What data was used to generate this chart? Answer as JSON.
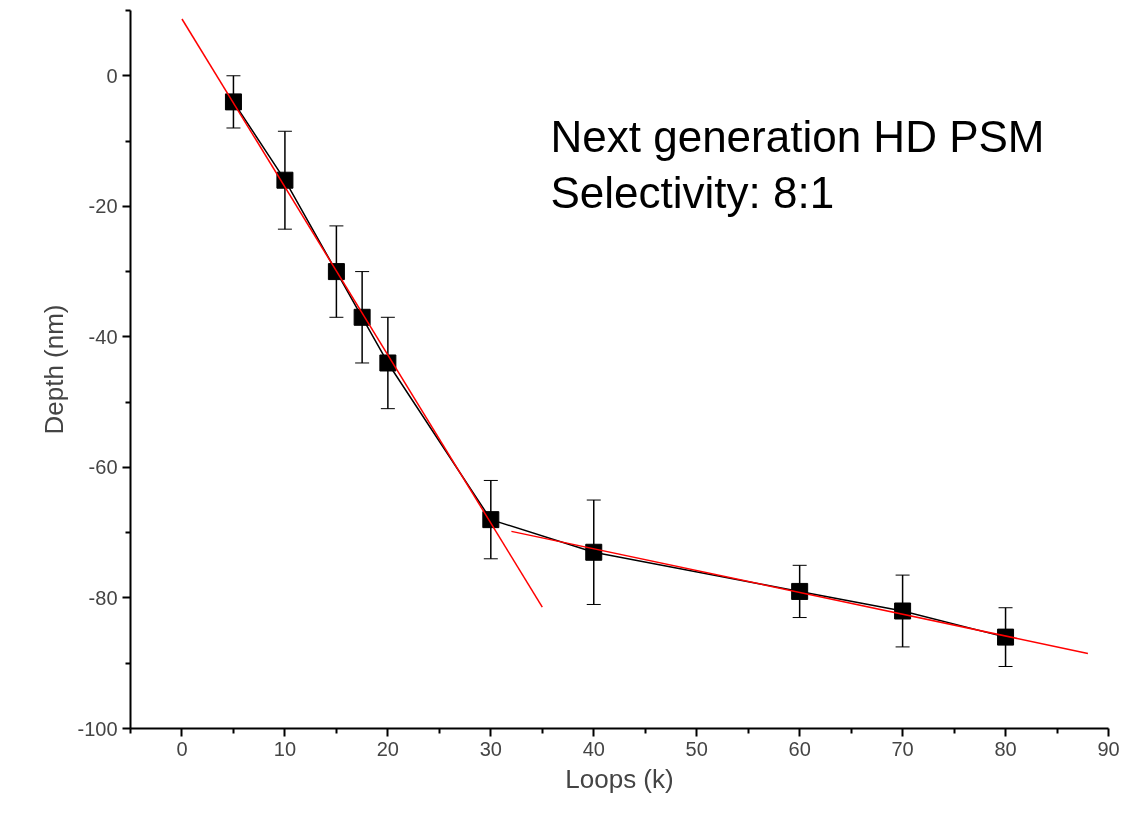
{
  "chart_data": {
    "type": "line",
    "xlabel": "Loops (k)",
    "ylabel": "Depth (nm)",
    "annotations": [
      "Next generation HD PSM",
      "Selectivity: 8:1"
    ],
    "xlim": [
      -5,
      90
    ],
    "xticks": [
      0,
      10,
      20,
      30,
      40,
      50,
      60,
      70,
      80,
      90
    ],
    "ylim": [
      -100,
      10
    ],
    "yticks": [
      -100,
      -80,
      -60,
      -40,
      -20,
      0
    ],
    "grid": false,
    "marker": "square",
    "line_style": "solid",
    "series": [
      {
        "color": "#000000",
        "x": [
          5,
          10,
          15,
          17.5,
          20,
          30,
          40,
          60,
          70,
          80
        ],
        "values": [
          -4,
          -16,
          -30,
          -37,
          -44,
          -68,
          -73,
          -79,
          -82,
          -86
        ],
        "errors": [
          4,
          7.5,
          7,
          7,
          7,
          6,
          8,
          4,
          5.5,
          4.5
        ]
      },
      {
        "color": "#ff0000",
        "x": [
          0,
          35
        ],
        "values": [
          8.7,
          -81.4
        ],
        "marker": "none"
      },
      {
        "color": "#ff0000",
        "x": [
          32,
          88
        ],
        "values": [
          -69.8,
          -88.5
        ],
        "marker": "none"
      }
    ]
  }
}
